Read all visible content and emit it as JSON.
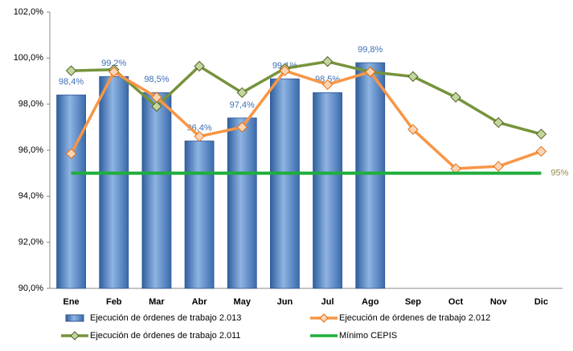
{
  "chart_data": {
    "type": "bar-line",
    "categories": [
      "Ene",
      "Feb",
      "Mar",
      "Abr",
      "May",
      "Jun",
      "Jul",
      "Ago",
      "Sep",
      "Oct",
      "Nov",
      "Dic"
    ],
    "ylim": [
      90,
      102
    ],
    "yticks": [
      {
        "value": 90,
        "label": "90,0%"
      },
      {
        "value": 92,
        "label": "92,0%"
      },
      {
        "value": 94,
        "label": "94,0%"
      },
      {
        "value": 96,
        "label": "96,0%"
      },
      {
        "value": 98,
        "label": "98,0%"
      },
      {
        "value": 100,
        "label": "100,0%"
      },
      {
        "value": 102,
        "label": "102,0%"
      }
    ],
    "grid": false,
    "series": [
      {
        "name": "Ejecución de órdenes de trabajo 2.013",
        "type": "bar",
        "color": "#4f81bd",
        "values": [
          98.4,
          99.2,
          98.5,
          96.4,
          97.4,
          99.1,
          98.5,
          99.8,
          null,
          null,
          null,
          null
        ],
        "value_labels": [
          "98,4%",
          "99,2%",
          "98,5%",
          "96,4%",
          "97,4%",
          "99,1%",
          "98,5%",
          "99,8%",
          null,
          null,
          null,
          null
        ]
      },
      {
        "name": "Ejecución de órdenes de trabajo 2.012",
        "type": "line",
        "color": "#f79646",
        "values": [
          95.85,
          99.4,
          98.3,
          96.6,
          97.0,
          99.45,
          98.85,
          99.4,
          96.9,
          95.2,
          95.3,
          95.95
        ]
      },
      {
        "name": "Ejecución de órdenes de trabajo 2.011",
        "type": "line",
        "color": "#77933c",
        "values": [
          99.45,
          99.5,
          97.9,
          99.65,
          98.5,
          99.55,
          99.85,
          99.4,
          99.2,
          98.3,
          97.2,
          96.7
        ]
      },
      {
        "name": "Mínimo CEPIS",
        "type": "line",
        "color": "#1fae3c",
        "values": [
          95,
          95,
          95,
          95,
          95,
          95,
          95,
          95,
          95,
          95,
          95,
          95
        ],
        "value_labels": [
          null,
          null,
          null,
          null,
          null,
          null,
          null,
          null,
          null,
          null,
          null,
          "95%"
        ]
      }
    ],
    "legend": "bottom"
  }
}
